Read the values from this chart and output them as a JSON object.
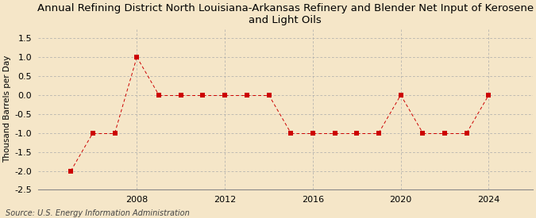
{
  "title": "Annual Refining District North Louisiana-Arkansas Refinery and Blender Net Input of Kerosene\nand Light Oils",
  "ylabel": "Thousand Barrels per Day",
  "source": "Source: U.S. Energy Information Administration",
  "background_color": "#f5e6c8",
  "grid_color": "#aaaaaa",
  "point_color": "#cc0000",
  "line_color": "#cc0000",
  "years": [
    2005,
    2006,
    2007,
    2008,
    2009,
    2010,
    2011,
    2012,
    2013,
    2014,
    2015,
    2016,
    2017,
    2018,
    2019,
    2020,
    2021,
    2022,
    2023,
    2024
  ],
  "values": [
    -2.0,
    -1.0,
    -1.0,
    1.0,
    0.0,
    0.0,
    0.0,
    0.0,
    0.0,
    0.0,
    -1.0,
    -1.0,
    -1.0,
    -1.0,
    -1.0,
    0.0,
    -1.0,
    -1.0,
    -1.0,
    0.0
  ],
  "ylim": [
    -2.5,
    1.75
  ],
  "yticks": [
    -2.5,
    -2.0,
    -1.5,
    -1.0,
    -0.5,
    0.0,
    0.5,
    1.0,
    1.5
  ],
  "ytick_labels": [
    "-2.5",
    "-2.0",
    "-1.5",
    "-1.0",
    "-0.5",
    "0.0",
    "0.5",
    "1.0",
    "1.5"
  ],
  "xtick_positions": [
    2008,
    2012,
    2016,
    2020,
    2024
  ],
  "vline_positions": [
    2008,
    2012,
    2016,
    2020,
    2024
  ],
  "xlim": [
    2003.5,
    2026
  ],
  "title_fontsize": 9.5,
  "ylabel_fontsize": 7.5,
  "tick_fontsize": 8,
  "source_fontsize": 7,
  "marker_size": 4,
  "linewidth": 0.7
}
